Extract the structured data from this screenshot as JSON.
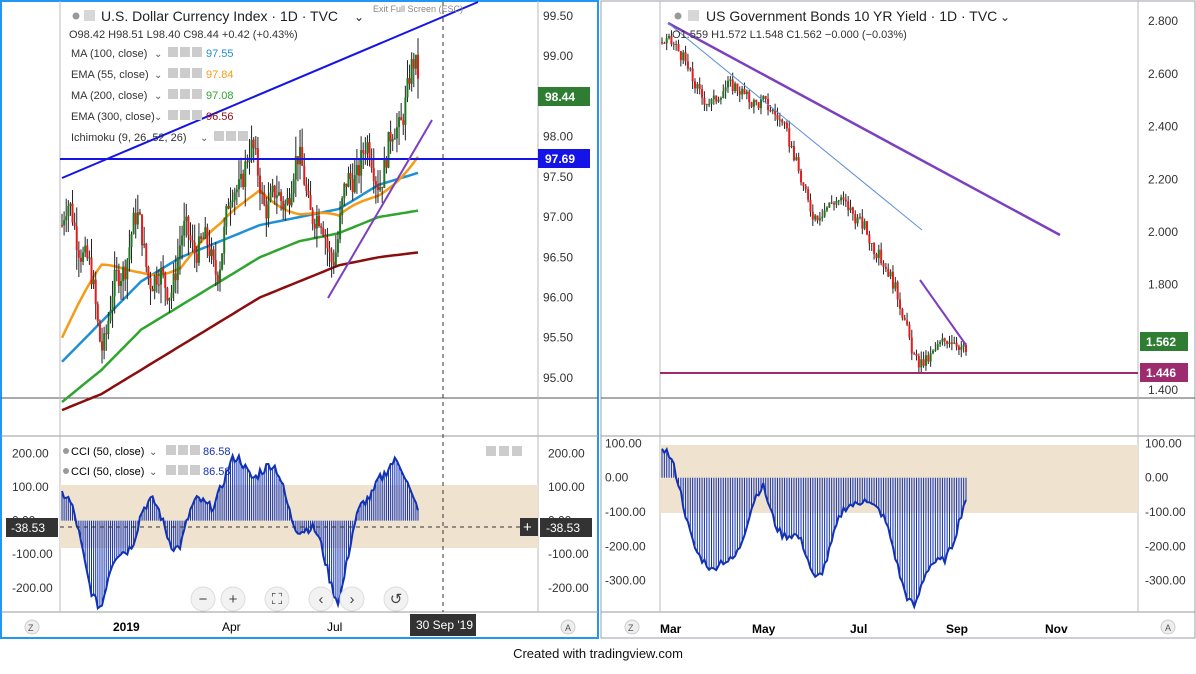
{
  "colors": {
    "frame_left": "#2196f3",
    "frame_right": "#787b86",
    "candle_up": "#1e7a1e",
    "candle_down": "#e51c1c",
    "ma100": "#1e90d6",
    "ema55": "#f59b16",
    "ma200": "#2fa52f",
    "ema300": "#8b0d0d",
    "blue_line": "#1414e6",
    "purple_line": "#7b3fbf",
    "cci_line": "#1232b4",
    "cci_band": "#efe3cf",
    "magenta": "#9c2c6e"
  },
  "footer": "Created with tradingview.com",
  "left": {
    "title": "U.S. Dollar Currency Index · 1D · TVC",
    "ohlc": "O98.42  H98.51  L98.40  C98.44  +0.42 (+0.43%)",
    "partial_overlay": "Exit Full Screen (ESC)",
    "indicators": [
      {
        "label": "MA (100, close)",
        "value": "97.55",
        "color": "#1e90d6"
      },
      {
        "label": "EMA (55, close)",
        "value": "97.84",
        "color": "#f59b16"
      },
      {
        "label": "MA (200, close)",
        "value": "97.08",
        "color": "#2fa52f"
      },
      {
        "label": "EMA (300, close)",
        "value": "96.56",
        "color": "#8b0d0d"
      },
      {
        "label": "Ichimoku (9, 26, 52, 26)",
        "value": "",
        "color": "#888888"
      }
    ],
    "price_labels": [
      {
        "text": "98.44",
        "value": 98.44,
        "bg": "#2e7d32"
      },
      {
        "text": "97.69",
        "value": 97.69,
        "bg": "#1414e6"
      }
    ],
    "cci_legend": [
      {
        "label": "CCI (50, close)",
        "value": "86.58"
      },
      {
        "label": "CCI (50, close)",
        "value": "86.58"
      }
    ],
    "crosshair_value": "-38.53",
    "date_label": "30 Sep '19",
    "x_ticks": [
      "2019",
      "Apr",
      "Jul"
    ],
    "nav_buttons": [
      "−",
      "+",
      "⛶",
      "‹",
      "›",
      "↺"
    ],
    "corner_left": "Z",
    "corner_right": "A"
  },
  "right": {
    "title": "US Government Bonds 10 YR Yield · 1D · TVC",
    "ohlc": "O1.559  H1.572  L1.548  C1.562  −0.000 (−0.03%)",
    "price_labels": [
      {
        "text": "1.562",
        "value": 1.562,
        "bg": "#2e7d32"
      },
      {
        "text": "1.446",
        "value": 1.446,
        "bg": "#9c2c6e"
      }
    ],
    "x_ticks": [
      "Mar",
      "May",
      "Jul",
      "Sep",
      "Nov"
    ],
    "corner_left": "Z",
    "corner_right": "A"
  },
  "chart_data": [
    {
      "type": "line",
      "title": "U.S. Dollar Currency Index · 1D · TVC",
      "x_ticks": [
        "2019",
        "Apr",
        "Jul"
      ],
      "y_ticks": [
        "99.50",
        "99.00",
        "98.50",
        "98.00",
        "97.50",
        "97.00",
        "96.50",
        "96.00",
        "95.50",
        "95.00"
      ],
      "ylim": [
        94.75,
        99.6
      ],
      "x": [
        "2018-12",
        "2019-01",
        "2019-02",
        "2019-03",
        "2019-04",
        "2019-05",
        "2019-06",
        "2019-07",
        "2019-08",
        "2019-09"
      ],
      "series": [
        {
          "name": "U.S. Dollar Currency Index",
          "values": [
            96.9,
            95.9,
            96.6,
            96.3,
            96.9,
            97.6,
            97.2,
            96.9,
            97.9,
            98.44
          ]
        },
        {
          "name": "MA (100, close)",
          "values": [
            95.2,
            95.7,
            96.2,
            96.5,
            96.7,
            96.9,
            97.0,
            97.1,
            97.4,
            97.55
          ]
        },
        {
          "name": "EMA (55, close)",
          "values": [
            95.5,
            96.3,
            96.4,
            96.4,
            96.8,
            97.4,
            97.1,
            96.9,
            97.3,
            97.84
          ]
        },
        {
          "name": "MA (200, close)",
          "values": [
            94.7,
            95.1,
            95.6,
            95.9,
            96.2,
            96.5,
            96.7,
            96.8,
            97.0,
            97.08
          ]
        },
        {
          "name": "EMA (300, close)",
          "values": [
            94.6,
            94.8,
            95.1,
            95.4,
            95.7,
            96.0,
            96.2,
            96.4,
            96.5,
            96.56
          ]
        }
      ]
    },
    {
      "type": "area",
      "title": "CCI (50, close)",
      "y_ticks": [
        "200.00",
        "100.00",
        "0.00",
        "-100.00",
        "-200.00"
      ],
      "ylim": [
        -260,
        240
      ],
      "x": [
        "2018-12",
        "2019-01",
        "2019-02",
        "2019-03",
        "2019-04",
        "2019-05",
        "2019-06",
        "2019-07",
        "2019-08",
        "2019-09"
      ],
      "series": [
        {
          "name": "CCI (50, close)",
          "values": [
            80,
            -250,
            40,
            -50,
            120,
            180,
            10,
            -200,
            170,
            86.58
          ]
        }
      ],
      "band": [
        -100,
        100
      ]
    },
    {
      "type": "line",
      "title": "US Government Bonds 10 YR Yield · 1D · TVC",
      "x_ticks": [
        "Mar",
        "May",
        "Jul",
        "Sep",
        "Nov"
      ],
      "y_ticks": [
        "2.800",
        "2.600",
        "2.400",
        "2.200",
        "2.000",
        "1.800",
        "1.600",
        "1.400"
      ],
      "ylim": [
        1.37,
        2.85
      ],
      "x": [
        "2019-03",
        "2019-04",
        "2019-05",
        "2019-06",
        "2019-07",
        "2019-08",
        "2019-09"
      ],
      "series": [
        {
          "name": "US Government Bonds 10 YR Yield",
          "values": [
            2.72,
            2.51,
            2.53,
            2.1,
            2.06,
            1.54,
            1.562
          ]
        }
      ]
    },
    {
      "type": "area",
      "title": "",
      "y_ticks": [
        "100.00",
        "0.00",
        "-100.00",
        "-200.00",
        "-300.00"
      ],
      "ylim": [
        -380,
        110
      ],
      "x": [
        "2019-03",
        "2019-04",
        "2019-05",
        "2019-06",
        "2019-07",
        "2019-08",
        "2019-09"
      ],
      "series": [
        {
          "name": "",
          "values": [
            90,
            -310,
            -50,
            -280,
            -20,
            -370,
            -90
          ]
        }
      ],
      "band": [
        -100,
        100
      ]
    }
  ]
}
